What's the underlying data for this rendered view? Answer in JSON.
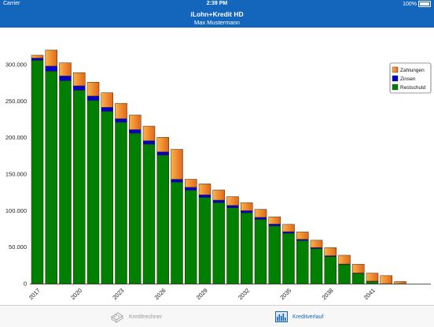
{
  "status": {
    "carrier": "Carrier",
    "time": "2:39 PM",
    "battery": "100%"
  },
  "nav": {
    "title": "iLohn+Kredit HD",
    "subtitle": "Max Mustermann"
  },
  "tabs": [
    {
      "label": "Kreditrechner",
      "icon": "calculator-icon",
      "active": false
    },
    {
      "label": "Kreditverlauf",
      "icon": "bar-chart-icon",
      "active": true
    }
  ],
  "chart_data": {
    "type": "bar",
    "stacked": true,
    "ylim": [
      0,
      340000
    ],
    "yticks": [
      0,
      50000,
      100000,
      150000,
      200000,
      250000,
      300000
    ],
    "ytick_labels": [
      "0",
      "50.000",
      "100.000",
      "150.000",
      "200.000",
      "250.000",
      "300.000"
    ],
    "x_tick_labels": [
      "2017",
      "2020",
      "2023",
      "2026",
      "2029",
      "2032",
      "2035",
      "2038",
      "2041"
    ],
    "categories": [
      "2017",
      "2018",
      "2019",
      "2020",
      "2021",
      "2022",
      "2023",
      "2024",
      "2025",
      "2026",
      "2027",
      "2028",
      "2029",
      "2030",
      "2031",
      "2032",
      "2033",
      "2034",
      "2035",
      "2036",
      "2037",
      "2038",
      "2039",
      "2040",
      "2041",
      "2042",
      "2043",
      "2044"
    ],
    "legend_position": "top-right",
    "series": [
      {
        "name": "Restschuld",
        "color": "#008000",
        "values": [
          306000,
          291000,
          278000,
          265000,
          251000,
          236000,
          221000,
          206000,
          191000,
          176000,
          139000,
          128000,
          118000,
          111000,
          104000,
          97000,
          88000,
          79000,
          69000,
          59000,
          48000,
          37000,
          26000,
          14000,
          3000,
          0,
          0,
          0
        ]
      },
      {
        "name": "Zinsen",
        "color": "#0000cc",
        "values": [
          3000,
          7000,
          6500,
          6000,
          6000,
          5500,
          5000,
          5000,
          4800,
          4500,
          4000,
          4000,
          3700,
          3400,
          3200,
          3000,
          2800,
          2600,
          2200,
          1800,
          1500,
          1300,
          900,
          600,
          400,
          0,
          0,
          0
        ]
      },
      {
        "name": "Zahlungen",
        "color": "#f07a10",
        "values": [
          4000,
          22000,
          18000,
          18000,
          19000,
          20000,
          21000,
          20000,
          20000,
          20000,
          41000,
          11000,
          15000,
          14000,
          12000,
          11000,
          11000,
          10000,
          10000,
          10000,
          10000,
          11000,
          12000,
          12000,
          11000,
          11000,
          3000,
          0
        ]
      }
    ]
  }
}
